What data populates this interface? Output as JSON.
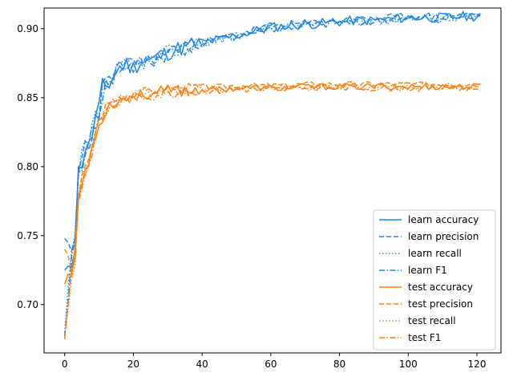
{
  "chart_data": {
    "type": "line",
    "title": "",
    "xlabel": "",
    "ylabel": "",
    "xlim": [
      -6,
      127
    ],
    "ylim": [
      0.665,
      0.915
    ],
    "xticks": [
      0,
      20,
      40,
      60,
      80,
      100,
      120
    ],
    "xtick_labels": [
      "0",
      "20",
      "40",
      "60",
      "80",
      "100",
      "120"
    ],
    "yticks": [
      0.7,
      0.75,
      0.8,
      0.85,
      0.9
    ],
    "ytick_labels": [
      "0.70",
      "0.75",
      "0.80",
      "0.85",
      "0.90"
    ],
    "grid": false,
    "legend_position": "lower-right",
    "colors": {
      "learn": "#1f86e8",
      "test": "#ff7f0e"
    },
    "anchors": {
      "learn": {
        "x": [
          0,
          1,
          2,
          3,
          4,
          5,
          6,
          7,
          8,
          9,
          10,
          11,
          12,
          14,
          16,
          18,
          20,
          22,
          25,
          28,
          30,
          35,
          40,
          45,
          50,
          55,
          60,
          65,
          70,
          75,
          80,
          85,
          90,
          95,
          100,
          105,
          110,
          115,
          121
        ],
        "y": [
          0.725,
          0.74,
          0.735,
          0.745,
          0.795,
          0.805,
          0.815,
          0.812,
          0.825,
          0.835,
          0.84,
          0.855,
          0.858,
          0.865,
          0.872,
          0.874,
          0.872,
          0.876,
          0.877,
          0.88,
          0.883,
          0.887,
          0.89,
          0.892,
          0.895,
          0.898,
          0.901,
          0.902,
          0.903,
          0.904,
          0.905,
          0.906,
          0.906,
          0.907,
          0.908,
          0.908,
          0.908,
          0.909,
          0.909
        ]
      },
      "test": {
        "x": [
          0,
          1,
          2,
          3,
          4,
          5,
          6,
          7,
          8,
          9,
          10,
          11,
          12,
          14,
          16,
          18,
          20,
          22,
          25,
          28,
          30,
          35,
          40,
          45,
          50,
          55,
          60,
          65,
          70,
          75,
          80,
          85,
          90,
          95,
          100,
          105,
          110,
          115,
          121
        ],
        "y": [
          0.715,
          0.73,
          0.725,
          0.735,
          0.778,
          0.788,
          0.798,
          0.8,
          0.815,
          0.825,
          0.83,
          0.838,
          0.842,
          0.846,
          0.848,
          0.85,
          0.851,
          0.852,
          0.853,
          0.854,
          0.855,
          0.855,
          0.856,
          0.856,
          0.857,
          0.857,
          0.857,
          0.857,
          0.858,
          0.858,
          0.858,
          0.858,
          0.858,
          0.858,
          0.858,
          0.858,
          0.858,
          0.858,
          0.858
        ]
      }
    },
    "series": [
      {
        "name": "learn accuracy",
        "group": "learn",
        "style": "solid",
        "offset": 0.0,
        "noise": 0.0045,
        "seed": 11
      },
      {
        "name": "learn precision",
        "group": "learn",
        "style": "dashed",
        "offset": 0.001,
        "noise": 0.0035,
        "seed": 23
      },
      {
        "name": "learn recall",
        "group": "learn",
        "style": "dotted",
        "offset": 0.0,
        "noise": 0.004,
        "seed": 37
      },
      {
        "name": "learn F1",
        "group": "learn",
        "style": "dashdot",
        "offset": -0.001,
        "noise": 0.004,
        "seed": 41
      },
      {
        "name": "test accuracy",
        "group": "test",
        "style": "solid",
        "offset": 0.0,
        "noise": 0.003,
        "seed": 53
      },
      {
        "name": "test precision",
        "group": "test",
        "style": "dashed",
        "offset": 0.002,
        "noise": 0.0025,
        "seed": 67
      },
      {
        "name": "test recall",
        "group": "test",
        "style": "dotted",
        "offset": 0.0,
        "noise": 0.003,
        "seed": 71
      },
      {
        "name": "test F1",
        "group": "test",
        "style": "dashdot",
        "offset": -0.001,
        "noise": 0.003,
        "seed": 83
      }
    ],
    "start_values": {
      "learn accuracy": 0.725,
      "learn precision": 0.748,
      "learn recall": 0.68,
      "learn F1": 0.677,
      "test accuracy": 0.715,
      "test precision": 0.74,
      "test recall": 0.678,
      "test F1": 0.675
    }
  }
}
